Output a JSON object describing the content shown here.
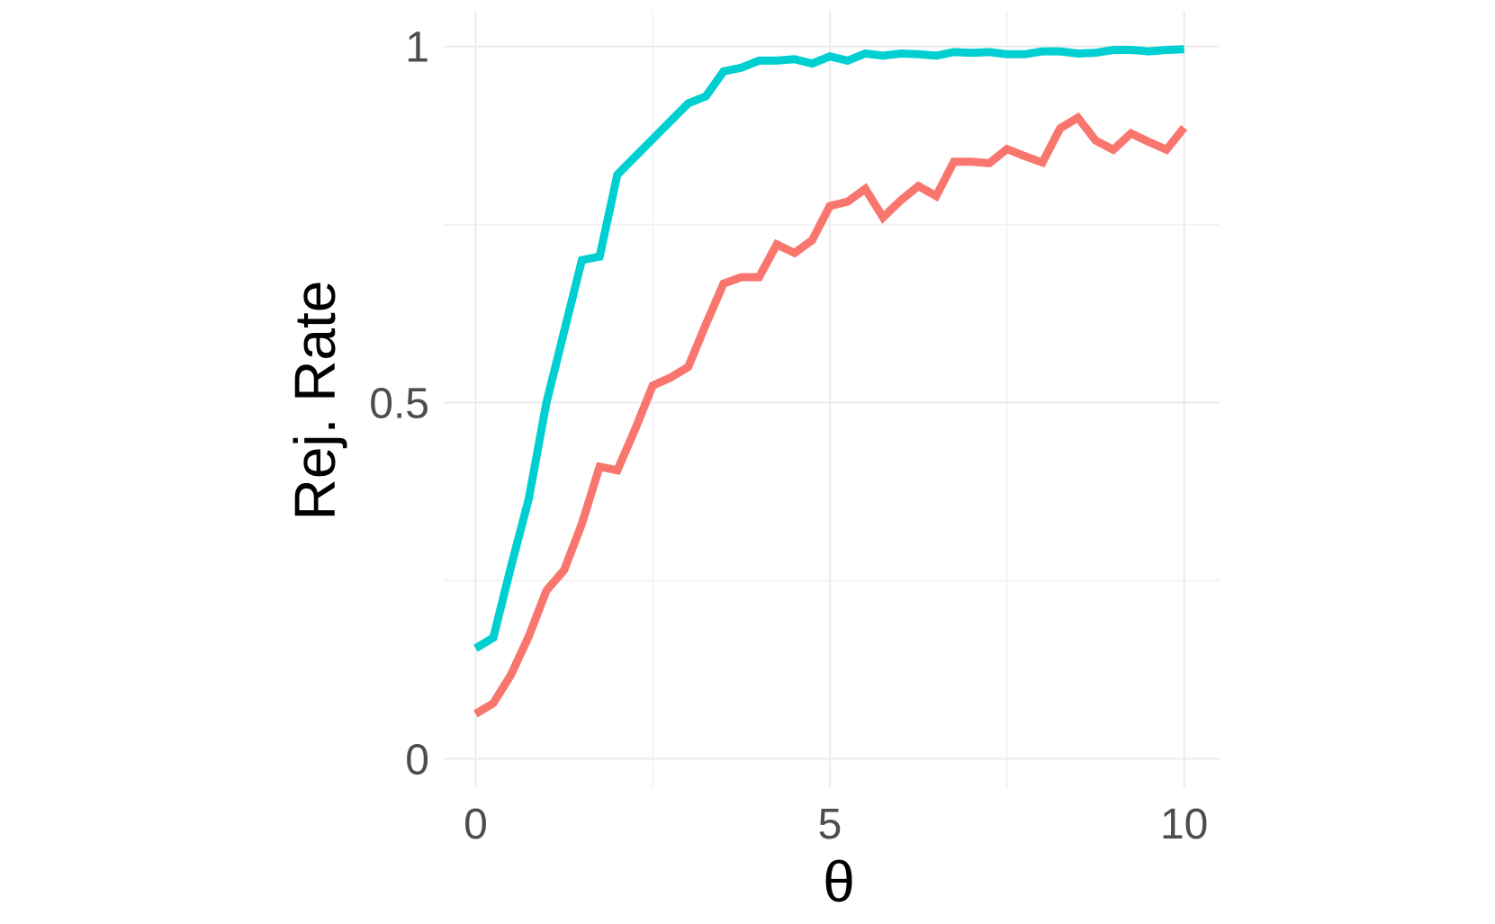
{
  "chart_data": {
    "type": "line",
    "xlabel": "θ",
    "ylabel": "Rej. Rate",
    "xlim": [
      -0.45,
      10.5
    ],
    "ylim": [
      -0.04,
      1.05
    ],
    "x_ticks": [
      {
        "value": 0,
        "label": "0"
      },
      {
        "value": 5,
        "label": "5"
      },
      {
        "value": 10,
        "label": "10"
      }
    ],
    "y_ticks": [
      {
        "value": 0,
        "label": "0"
      },
      {
        "value": 0.5,
        "label": "0.5"
      },
      {
        "value": 1,
        "label": "1"
      }
    ],
    "x_minor_ticks": [
      2.5,
      7.5
    ],
    "y_minor_ticks": [
      0.25,
      0.75
    ],
    "grid": true,
    "legend": "none",
    "x": [
      0,
      0.25,
      0.5,
      0.75,
      1,
      1.25,
      1.5,
      1.75,
      2,
      2.25,
      2.5,
      2.75,
      3,
      3.25,
      3.5,
      3.75,
      4,
      4.25,
      4.5,
      4.75,
      5,
      5.25,
      5.5,
      5.75,
      6,
      6.25,
      6.5,
      6.75,
      7,
      7.25,
      7.5,
      7.75,
      8,
      8.25,
      8.5,
      8.75,
      9,
      9.25,
      9.5,
      9.75,
      10
    ],
    "series": [
      {
        "color": "#00CFD1",
        "values": [
          0.155,
          0.17,
          0.27,
          0.365,
          0.5,
          0.6,
          0.7,
          0.705,
          0.82,
          0.845,
          0.87,
          0.895,
          0.92,
          0.93,
          0.965,
          0.97,
          0.98,
          0.98,
          0.982,
          0.976,
          0.986,
          0.98,
          0.99,
          0.987,
          0.99,
          0.989,
          0.987,
          0.992,
          0.991,
          0.992,
          0.989,
          0.989,
          0.993,
          0.993,
          0.99,
          0.991,
          0.995,
          0.995,
          0.993,
          0.995,
          0.996
        ]
      },
      {
        "color": "#F8766D",
        "values": [
          0.063,
          0.078,
          0.118,
          0.172,
          0.236,
          0.265,
          0.33,
          0.41,
          0.405,
          0.462,
          0.524,
          0.535,
          0.55,
          0.61,
          0.667,
          0.676,
          0.676,
          0.722,
          0.71,
          0.728,
          0.776,
          0.782,
          0.8,
          0.76,
          0.784,
          0.804,
          0.79,
          0.838,
          0.838,
          0.836,
          0.856,
          0.846,
          0.837,
          0.885,
          0.9,
          0.868,
          0.855,
          0.878,
          0.866,
          0.855,
          0.886
        ]
      }
    ]
  }
}
